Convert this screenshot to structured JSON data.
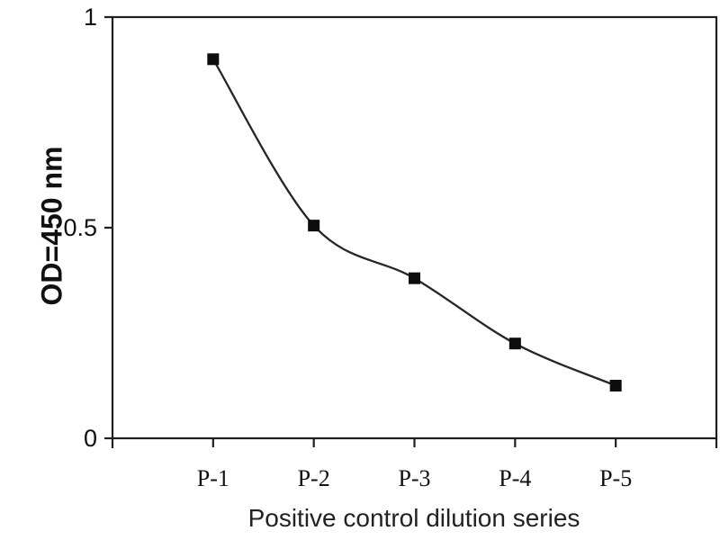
{
  "chart_data": {
    "type": "line",
    "categories": [
      "P-1",
      "P-2",
      "P-3",
      "P-4",
      "P-5"
    ],
    "values": [
      0.9,
      0.505,
      0.38,
      0.225,
      0.125
    ],
    "title": "",
    "xlabel": "Positive control dilution series",
    "ylabel": "OD=450 nm",
    "ylim": [
      0,
      1
    ],
    "yticks": [
      0,
      0.5,
      1
    ],
    "ytick_labels": [
      "0",
      "0.5",
      "1"
    ],
    "grid": false,
    "legend_position": "none",
    "smooth_line": true,
    "marker": "square",
    "colors": {
      "line": "#262626",
      "marker": "#0d0d0d",
      "axis": "#1f1f1f",
      "text": "#111111",
      "background": "#ffffff"
    }
  }
}
